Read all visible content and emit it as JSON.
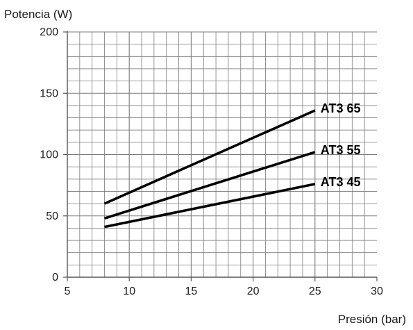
{
  "chart_data": {
    "type": "line",
    "title": "",
    "ylabel": "Potencia (W)",
    "xlabel": "Presión (bar)",
    "xlim": [
      5,
      30
    ],
    "ylim": [
      0,
      200
    ],
    "x_ticks": [
      5,
      10,
      15,
      20,
      25,
      30
    ],
    "y_ticks": [
      0,
      50,
      100,
      150,
      200
    ],
    "grid": true,
    "legend": "none",
    "series": [
      {
        "name": "AT3 65",
        "x": [
          8,
          25
        ],
        "y": [
          60,
          136
        ]
      },
      {
        "name": "AT3 55",
        "x": [
          8,
          25
        ],
        "y": [
          48,
          102
        ]
      },
      {
        "name": "AT3 45",
        "x": [
          8,
          25
        ],
        "y": [
          41,
          76
        ]
      }
    ]
  },
  "colors": {
    "line": "#000000",
    "grid": "#7a7a7a",
    "axis": "#555555",
    "text": "#1a1a1a"
  }
}
